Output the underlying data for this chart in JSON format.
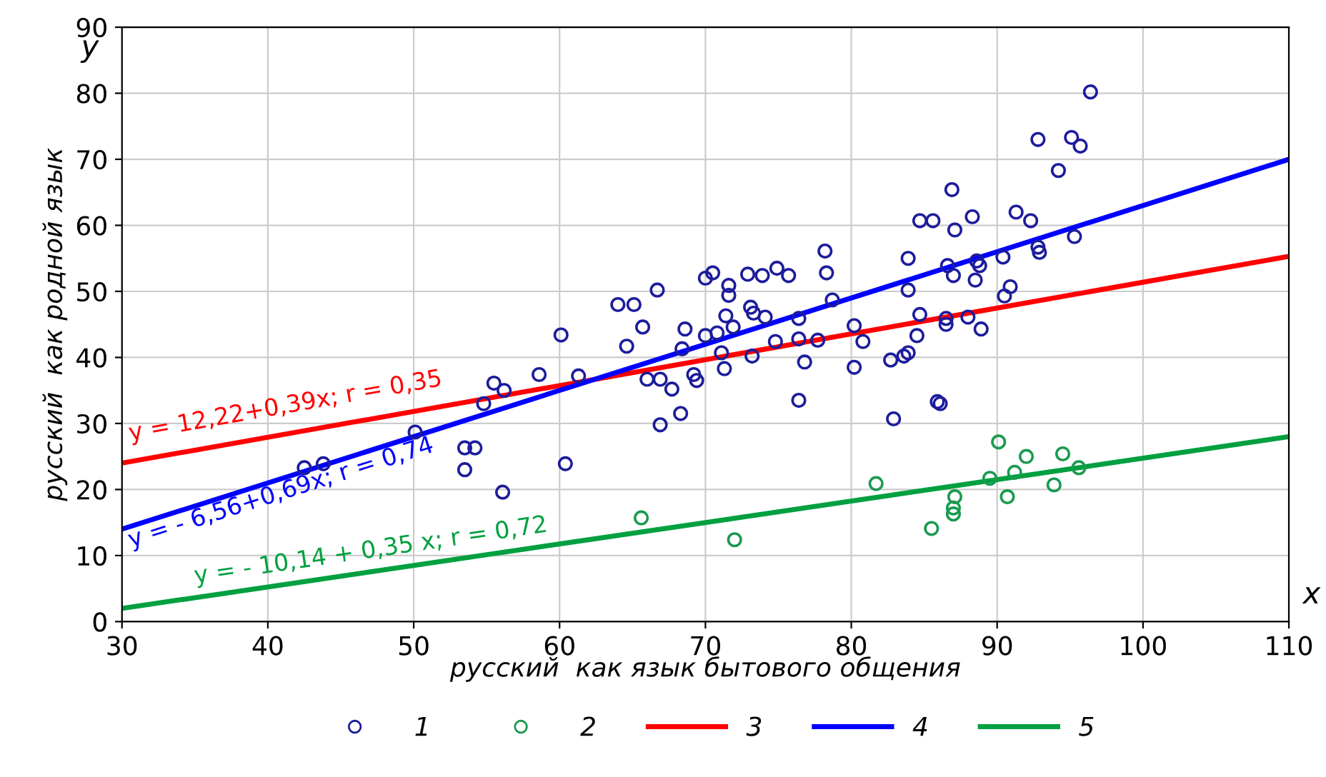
{
  "chart_data": {
    "type": "scatter",
    "xlabel": "русский  как язык бытового общения",
    "ylabel": "русский  как родной язык",
    "xlim": [
      30,
      110
    ],
    "ylim": [
      0,
      90
    ],
    "xticks": [
      30,
      40,
      50,
      60,
      70,
      80,
      90,
      100,
      110
    ],
    "yticks": [
      0,
      10,
      20,
      30,
      40,
      50,
      60,
      70,
      80,
      90
    ],
    "grid": true,
    "legend": "bottom",
    "annotations": [
      "y",
      "x",
      "y = 12,22+0,39x; r = 0,35",
      "y = - 6,56+0,69x; r = 0,74",
      "y = - 10,14 + 0,35 x; r = 0,72"
    ],
    "series": [
      {
        "name": "1",
        "marker": "circle",
        "color": "#1c1c9c",
        "x": [
          42.5,
          43.8,
          50.1,
          53.5,
          54.2,
          53.5,
          54.8,
          55.5,
          56.2,
          56.1,
          58.6,
          60.1,
          60.4,
          61.3,
          64.0,
          65.1,
          66.7,
          65.7,
          64.6,
          66.0,
          66.9,
          67.7,
          66.9,
          68.3,
          68.6,
          68.4,
          69.2,
          69.4,
          70.0,
          70.0,
          70.5,
          70.8,
          71.1,
          71.3,
          71.6,
          71.6,
          71.4,
          71.9,
          72.9,
          73.9,
          74.9,
          75.7,
          73.1,
          73.3,
          74.1,
          73.2,
          74.8,
          76.4,
          76.4,
          76.8,
          76.4,
          77.7,
          78.2,
          78.3,
          78.7,
          80.2,
          80.8,
          80.2,
          82.7,
          83.6,
          83.9,
          82.9,
          83.9,
          83.9,
          84.7,
          84.5,
          85.9,
          84.7,
          85.6,
          96.4,
          92.8,
          95.1,
          95.7,
          94.2,
          86.9,
          87.1,
          88.3,
          91.3,
          92.3,
          95.3,
          86.6,
          87.0,
          88.6,
          88.8,
          88.5,
          90.4,
          92.8,
          92.9,
          86.5,
          86.5,
          88.0,
          88.9,
          90.5,
          90.9,
          86.1
        ],
        "values": [
          23.3,
          23.9,
          28.7,
          26.3,
          26.3,
          23.0,
          33.0,
          36.1,
          35.0,
          19.6,
          37.4,
          43.4,
          23.9,
          37.2,
          48.0,
          48.0,
          50.2,
          44.6,
          41.7,
          36.7,
          36.7,
          35.2,
          29.8,
          31.5,
          44.3,
          41.3,
          37.4,
          36.5,
          43.3,
          52.0,
          52.8,
          43.7,
          40.7,
          38.3,
          50.9,
          49.4,
          46.3,
          44.6,
          52.6,
          52.4,
          53.5,
          52.4,
          47.6,
          46.7,
          46.1,
          40.2,
          42.4,
          45.9,
          42.8,
          39.3,
          33.5,
          42.6,
          56.1,
          52.8,
          48.7,
          44.8,
          42.4,
          38.5,
          39.6,
          40.2,
          40.7,
          30.7,
          55.0,
          50.2,
          46.5,
          43.3,
          33.3,
          60.7,
          60.7,
          80.2,
          73.0,
          73.3,
          72.0,
          68.3,
          65.4,
          59.3,
          61.3,
          62.0,
          60.7,
          58.3,
          53.9,
          52.4,
          54.6,
          53.9,
          51.7,
          55.2,
          56.7,
          55.9,
          45.9,
          45.0,
          46.1,
          44.3,
          49.3,
          50.7,
          33.0
        ]
      },
      {
        "name": "2",
        "marker": "circle",
        "color": "#1a9a50",
        "x": [
          65.6,
          72.0,
          81.7,
          85.5,
          87.0,
          87.0,
          87.1,
          89.5,
          90.1,
          90.7,
          91.2,
          92.0,
          93.9,
          94.5,
          95.6
        ],
        "values": [
          15.7,
          12.4,
          20.9,
          14.1,
          16.3,
          17.2,
          18.9,
          21.7,
          27.2,
          18.9,
          22.6,
          25.0,
          20.7,
          25.4,
          23.3
        ]
      },
      {
        "name": "3",
        "type": "line",
        "color": "#ff0000",
        "x": [
          30,
          110
        ],
        "values": [
          24,
          55.3
        ]
      },
      {
        "name": "4",
        "type": "line",
        "color": "#0000ff",
        "x": [
          30,
          110
        ],
        "values": [
          14,
          70
        ]
      },
      {
        "name": "5",
        "type": "line",
        "color": "#00a040",
        "x": [
          30,
          110
        ],
        "values": [
          2,
          28
        ]
      }
    ]
  }
}
